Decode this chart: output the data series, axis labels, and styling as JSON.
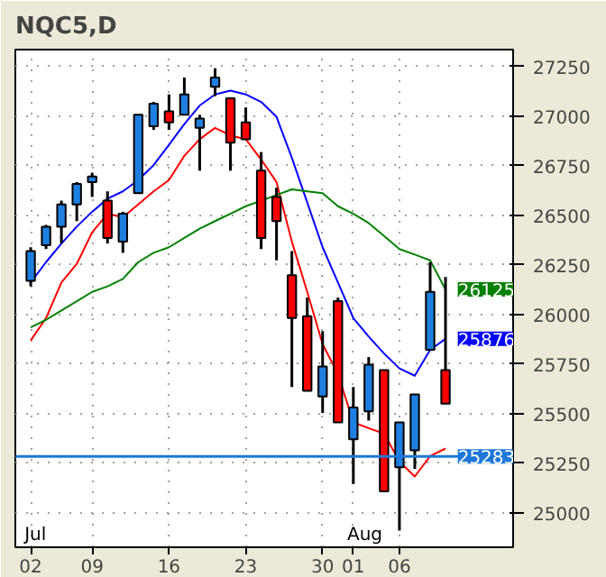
{
  "chart_data": {
    "type": "candlestick",
    "title": "NQC5,D",
    "categories": [
      "02",
      null,
      null,
      null,
      "09",
      null,
      null,
      null,
      null,
      "16",
      null,
      null,
      null,
      null,
      "23",
      null,
      null,
      null,
      null,
      "30",
      null,
      "01",
      null,
      null,
      "06",
      null,
      null,
      null
    ],
    "ohlc": [
      [
        26169,
        26338,
        26141,
        26319
      ],
      [
        26348,
        26451,
        26329,
        26442
      ],
      [
        26442,
        26573,
        26357,
        26554
      ],
      [
        26554,
        26667,
        26470,
        26658
      ],
      [
        26667,
        26714,
        26592,
        26695
      ],
      [
        26573,
        26620,
        26357,
        26385
      ],
      [
        26366,
        26517,
        26310,
        26507
      ],
      [
        26611,
        27006,
        26611,
        27006
      ],
      [
        26949,
        27071,
        26930,
        27062
      ],
      [
        27024,
        27109,
        26930,
        26968
      ],
      [
        27006,
        27194,
        27006,
        27109
      ],
      [
        26940,
        27006,
        26724,
        26987
      ],
      [
        27147,
        27241,
        27100,
        27194
      ],
      [
        27090,
        27090,
        26724,
        26865
      ],
      [
        26968,
        27043,
        26883,
        26883
      ],
      [
        26724,
        26818,
        26329,
        26385
      ],
      [
        26592,
        26639,
        26272,
        26470
      ],
      [
        26197,
        26319,
        25633,
        25981
      ],
      [
        25990,
        26084,
        25614,
        25614
      ],
      [
        25586,
        25915,
        25502,
        25737
      ],
      [
        26066,
        26084,
        25455,
        25455
      ],
      [
        25370,
        25633,
        25144,
        25530
      ],
      [
        25511,
        25784,
        25464,
        25746
      ],
      [
        25718,
        25718,
        25107,
        25107
      ],
      [
        25229,
        25455,
        24909,
        25455
      ],
      [
        25314,
        25596,
        25220,
        25596
      ],
      [
        25821,
        26263,
        25821,
        26113
      ],
      [
        25718,
        26188,
        25549,
        25549
      ]
    ],
    "colors": [
      "#1e7fe0",
      "#1e7fe0",
      "#1e7fe0",
      "#1e7fe0",
      "#1e7fe0",
      "#ff0000",
      "#1e7fe0",
      "#1e7fe0",
      "#1e7fe0",
      "#ff0000",
      "#1e7fe0",
      "#1e7fe0",
      "#1e7fe0",
      "#ff0000",
      "#ff0000",
      "#ff0000",
      "#ff0000",
      "#ff0000",
      "#ff0000",
      "#1e7fe0",
      "#ff0000",
      "#1e7fe0",
      "#1e7fe0",
      "#ff0000",
      "#1e7fe0",
      "#1e7fe0",
      "#1e7fe0",
      "#ff0000"
    ],
    "series": [
      {
        "type": "line",
        "color": "#0000ff",
        "values": [
          26160,
          26263,
          26357,
          26442,
          26517,
          26583,
          26620,
          26677,
          26752,
          26855,
          26959,
          27053,
          27109,
          27128,
          27109,
          27071,
          26996,
          26789,
          26564,
          26338,
          26160,
          25981,
          25887,
          25802,
          25727,
          25690,
          25821,
          25876
        ]
      },
      {
        "type": "line",
        "color": "#ff0000",
        "values": [
          25868,
          25981,
          26160,
          26254,
          26413,
          26507,
          26489,
          26554,
          26620,
          26677,
          26799,
          26883,
          26940,
          26902,
          26883,
          26780,
          26667,
          26366,
          26113,
          25849,
          25699,
          25455,
          25426,
          25398,
          25257,
          25182,
          25285,
          25323
        ]
      },
      {
        "type": "line",
        "color": "#008000",
        "values": [
          25934,
          25972,
          26019,
          26066,
          26113,
          26141,
          26178,
          26263,
          26310,
          26338,
          26385,
          26432,
          26470,
          26507,
          26545,
          26573,
          26601,
          26630,
          26620,
          26611,
          26545,
          26507,
          26460,
          26395,
          26329,
          26301,
          26272,
          26125
        ]
      }
    ],
    "ylim": [
      24825,
      27335
    ],
    "yticks": [
      25000,
      25250,
      25500,
      25750,
      26000,
      26250,
      26500,
      26750,
      27000,
      27250
    ],
    "grid": true,
    "ref_lines": [
      {
        "axis": "y",
        "value": 25283,
        "label": "25283",
        "color": "#1e78d8"
      }
    ],
    "annotations": [
      "Jul",
      "Aug",
      "26125",
      "25876"
    ]
  }
}
